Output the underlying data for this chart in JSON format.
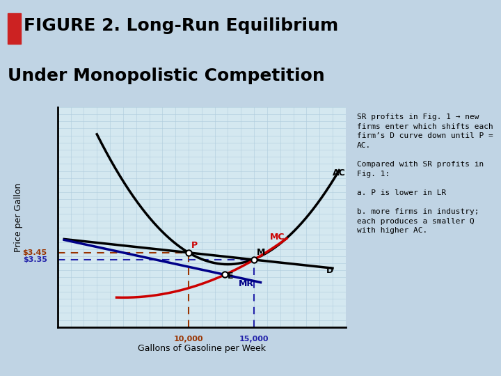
{
  "title_line1": "FIGURE 2. Long-Run Equilibrium",
  "title_line2": "Under Monopolistic Competition",
  "title_bg": "#ffffdd",
  "title_border": "#aaaaaa",
  "chart_bg": "#d4e8f0",
  "grid_color": "#b0ccdd",
  "outer_bg": "#c0d4e4",
  "xlabel": "Gallons of Gasoline per Week",
  "ylabel": "Price per Gallon",
  "annotation_bg": "#c8d0e8",
  "red_color": "#cc0000",
  "blue_color": "#000088",
  "black_color": "#000000",
  "dashed_red": "#993300",
  "dashed_blue": "#2222aa",
  "x_min": 0,
  "x_max": 22000,
  "y_min": 2.4,
  "y_max": 5.5,
  "q_P": 10000,
  "p_P": 3.45,
  "q_M": 15000,
  "p_M": 3.35
}
